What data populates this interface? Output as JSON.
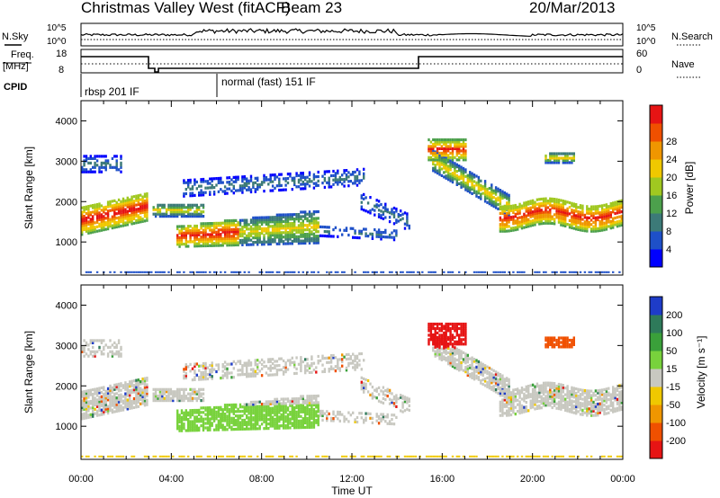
{
  "header": {
    "station": "Christmas Valley West (fitACF)",
    "beam": "Beam 23",
    "date": "20/Mar/2013"
  },
  "top_panels": {
    "nsky": {
      "label": "N.Sky",
      "tick_top": "10^5",
      "tick_bottom": "10^0"
    },
    "nsearch": {
      "label": "N.Search",
      "tick_top": "10^5",
      "tick_bottom": "10^0"
    },
    "freq": {
      "label_line1": "Freq.",
      "label_line2": "[MHz]",
      "tick_top": "18",
      "tick_bottom": "8"
    },
    "nave": {
      "label": "Nave",
      "tick_top": "60",
      "tick_bottom": "0"
    },
    "cpid": {
      "label": "CPID",
      "mode1": "rbsp 201 IF",
      "mode2": "normal (fast) 151 IF"
    }
  },
  "chart_data": [
    {
      "type": "heatmap",
      "title": "Power",
      "ylabel": "Slant Range [km]",
      "xlabel": "Time UT",
      "ylim": [
        180,
        4500
      ],
      "yticks": [
        "1000",
        "2000",
        "3000",
        "4000"
      ],
      "xticks": [
        "00:00",
        "04:00",
        "08:00",
        "12:00",
        "16:00",
        "20:00",
        "00:00"
      ],
      "colorbar": {
        "label": "Power [dB]",
        "ticks": [
          "4",
          "8",
          "12",
          "16",
          "20",
          "24",
          "28"
        ],
        "colors": [
          "#0000ff",
          "#1e50c8",
          "#3c7a78",
          "#4ca04c",
          "#a0c820",
          "#f0c800",
          "#f09600",
          "#f05000",
          "#e61414"
        ]
      }
    },
    {
      "type": "heatmap",
      "title": "Velocity",
      "ylabel": "Slant Range [km]",
      "xlabel": "Time UT",
      "ylim": [
        180,
        4500
      ],
      "yticks": [
        "1000",
        "2000",
        "3000",
        "4000"
      ],
      "xticks": [
        "00:00",
        "04:00",
        "08:00",
        "12:00",
        "16:00",
        "20:00",
        "00:00"
      ],
      "colorbar": {
        "label": "Velocity [m s⁻¹]",
        "ticks": [
          "200",
          "100",
          "50",
          "15",
          "-15",
          "-50",
          "-100",
          "-200"
        ],
        "colors": [
          "#1e3cc8",
          "#2e7a5a",
          "#3aa03a",
          "#78d23c",
          "#c8c8c0",
          "#f0c800",
          "#f09600",
          "#f05000",
          "#e61414"
        ]
      }
    }
  ]
}
